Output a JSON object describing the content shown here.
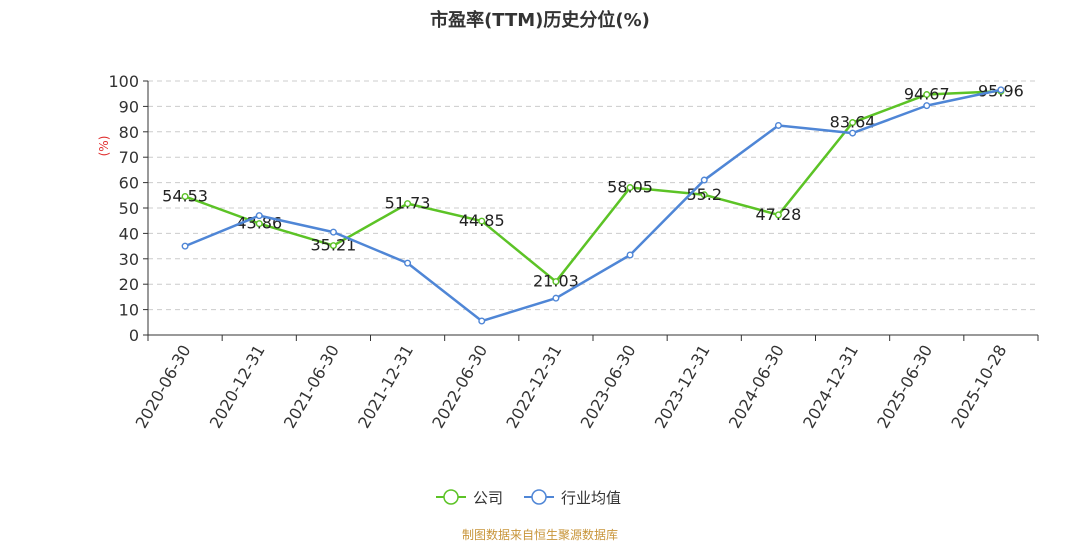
{
  "chart_data": {
    "type": "line",
    "title": "市盈率(TTM)历史分位(%)",
    "ylabel": "(%)",
    "ylim": [
      0,
      100
    ],
    "yticks": [
      0,
      10,
      20,
      30,
      40,
      50,
      60,
      70,
      80,
      90,
      100
    ],
    "grid": "horizontal-dashed",
    "legend_position": "bottom-center",
    "categories": [
      "2020-06-30",
      "2020-12-31",
      "2021-06-30",
      "2021-12-31",
      "2022-06-30",
      "2022-12-31",
      "2023-06-30",
      "2023-12-31",
      "2024-06-30",
      "2024-12-31",
      "2025-06-30",
      "2025-10-28"
    ],
    "series": [
      {
        "name": "公司",
        "color": "#5cc326",
        "values": [
          54.53,
          43.86,
          35.21,
          51.73,
          44.85,
          21.03,
          58.05,
          55.2,
          47.28,
          83.64,
          94.67,
          95.96
        ],
        "value_labels": [
          "54.53",
          "43.86",
          "35.21",
          "51.73",
          "44.85",
          "21.03",
          "58.05",
          "55.2",
          "47.28",
          "83.64",
          "94.67",
          "95.96"
        ]
      },
      {
        "name": "行业均值",
        "color": "#4f86d6",
        "values": [
          35,
          47,
          40.5,
          28.3,
          5.5,
          14.5,
          31.5,
          61,
          82.5,
          79.5,
          90.3,
          96.5
        ]
      }
    ]
  },
  "footer": {
    "source": "制图数据来自恒生聚源数据库"
  }
}
